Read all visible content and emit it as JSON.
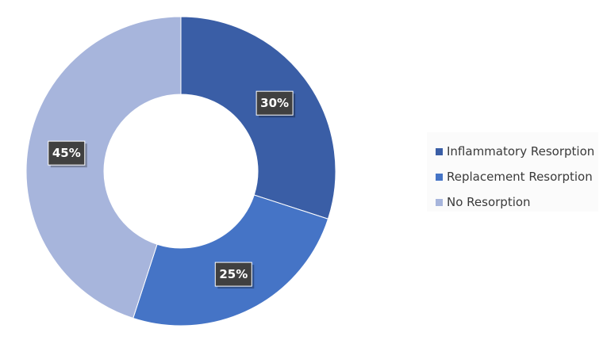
{
  "chart_data": {
    "type": "pie",
    "variant": "donut",
    "categories": [
      "Inflammatory Resorption",
      "Replacement Resorption",
      "No Resorption"
    ],
    "values": [
      30,
      25,
      45
    ],
    "data_labels": [
      "30%",
      "25%",
      "45%"
    ],
    "colors": [
      "#3a5ea6",
      "#4574c6",
      "#a7b5dc"
    ],
    "legend_position": "right",
    "title": ""
  }
}
